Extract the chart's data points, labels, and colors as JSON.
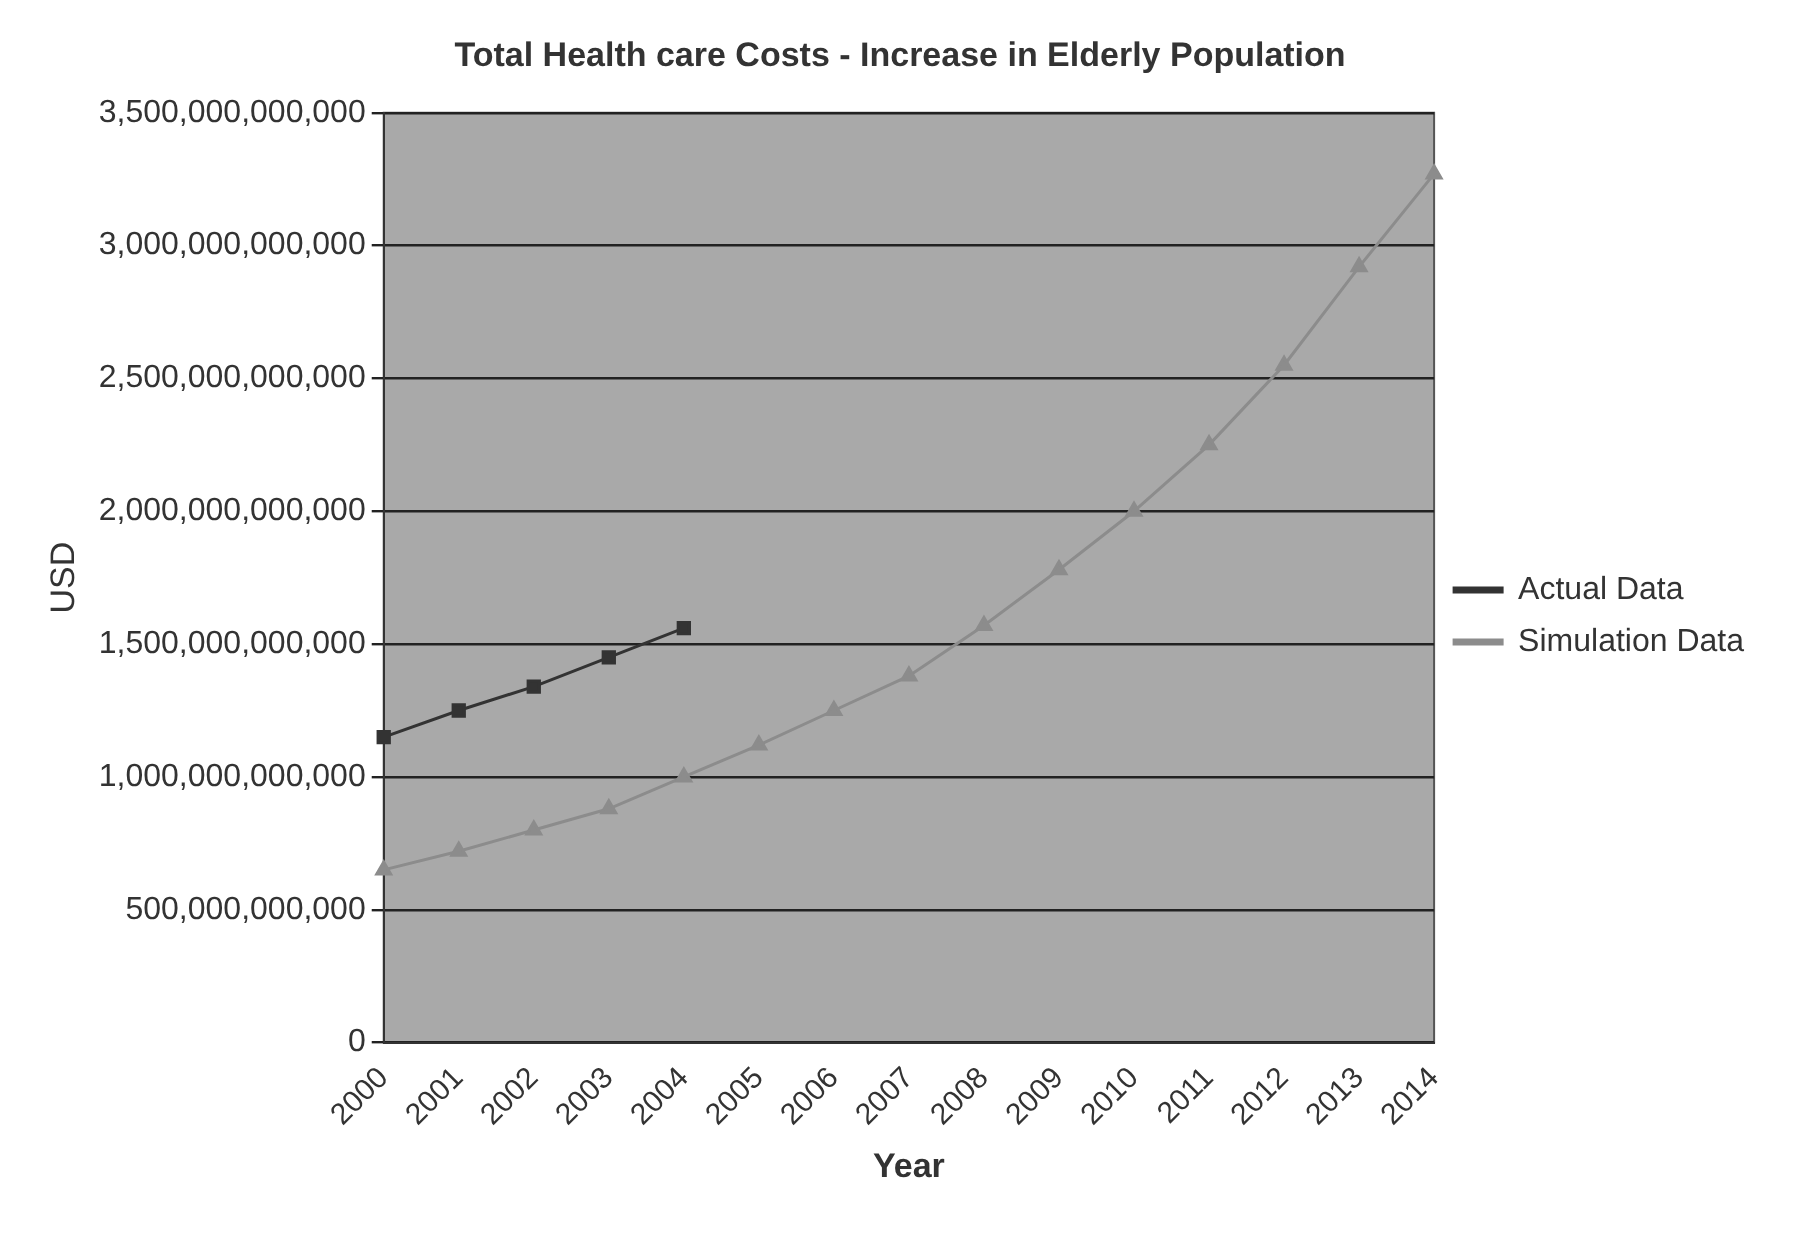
{
  "chart_data": {
    "type": "line",
    "title": "Total Health care Costs - Increase in Elderly Population",
    "xlabel": "Year",
    "ylabel": "USD",
    "categories": [
      "2000",
      "2001",
      "2002",
      "2003",
      "2004",
      "2005",
      "2006",
      "2007",
      "2008",
      "2009",
      "2010",
      "2011",
      "2012",
      "2013",
      "2014"
    ],
    "series": [
      {
        "name": "Actual Data",
        "color": "#333333",
        "marker": "square",
        "values": [
          1150000000000,
          1250000000000,
          1340000000000,
          1450000000000,
          1560000000000,
          null,
          null,
          null,
          null,
          null,
          null,
          null,
          null,
          null,
          null
        ]
      },
      {
        "name": "Simulation Data",
        "color": "#8c8c8c",
        "marker": "triangle",
        "values": [
          650000000000,
          720000000000,
          800000000000,
          880000000000,
          1000000000000,
          1120000000000,
          1250000000000,
          1380000000000,
          1570000000000,
          1780000000000,
          2000000000000,
          2250000000000,
          2550000000000,
          2920000000000,
          3270000000000
        ]
      }
    ],
    "ylim": [
      0,
      3500000000000
    ],
    "yticks": [
      0,
      {
        "value": 500000000000,
        "label": "500,000,000,000"
      },
      {
        "value": 1000000000000,
        "label": "1,000,000,000,000"
      },
      {
        "value": 1500000000000,
        "label": "1,500,000,000,000"
      },
      {
        "value": 2000000000000,
        "label": "2,000,000,000,000"
      },
      {
        "value": 2500000000000,
        "label": "2,500,000,000,000"
      },
      {
        "value": 3000000000000,
        "label": "3,000,000,000,000"
      },
      {
        "value": 3500000000000,
        "label": "3,500,000,000,000"
      }
    ],
    "grid": "y",
    "legend": "right"
  }
}
